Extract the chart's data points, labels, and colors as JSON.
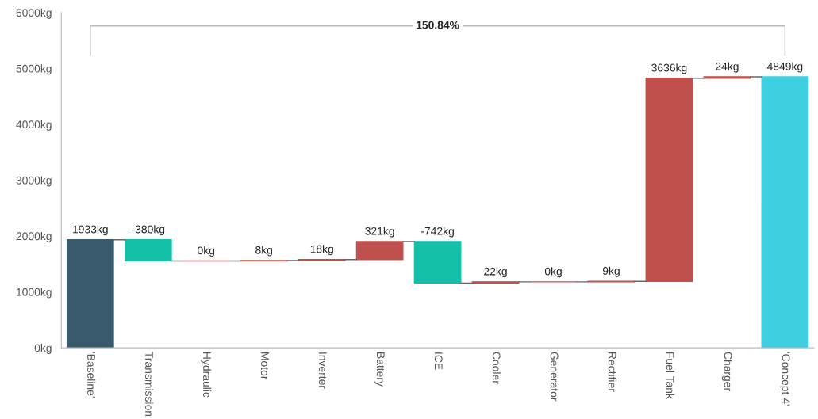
{
  "chart_data": {
    "type": "bar",
    "categories": [
      "'Baseline'",
      "Transmission",
      "Hydraulic",
      "Motor",
      "Inverter",
      "Battery",
      "ICE",
      "Cooler",
      "Generator",
      "Rectifier",
      "Fuel Tank",
      "Charger",
      "'Concept 4'"
    ],
    "values": [
      1933,
      -380,
      0,
      8,
      18,
      321,
      -742,
      22,
      0,
      9,
      3636,
      24,
      4849
    ],
    "base": [
      0,
      1933,
      1553,
      1553,
      1561,
      1579,
      1900,
      1158,
      1180,
      1180,
      1189,
      4825,
      0
    ],
    "colors": [
      "#3a5a6e",
      "#14c0a8",
      "#c0504d",
      "#c0504d",
      "#c0504d",
      "#c0504d",
      "#14c0a8",
      "#c0504d",
      "#c0504d",
      "#c0504d",
      "#c0504d",
      "#c0504d",
      "#3ecfe0"
    ],
    "value_labels": [
      "1933kg",
      "-380kg",
      "0kg",
      "8kg",
      "18kg",
      "321kg",
      "-742kg",
      "22kg",
      "0kg",
      "9kg",
      "3636kg",
      "24kg",
      "4849kg"
    ],
    "ylim": [
      0,
      6000
    ],
    "yticks": [
      {
        "value": 0,
        "label": "0kg"
      },
      {
        "value": 1000,
        "label": "1000kg"
      },
      {
        "value": 2000,
        "label": "2000kg"
      },
      {
        "value": 3000,
        "label": "3000kg"
      },
      {
        "value": 4000,
        "label": "4000kg"
      },
      {
        "value": 5000,
        "label": "5000kg"
      },
      {
        "value": 6000,
        "label": "6000kg"
      }
    ],
    "annotations": [
      "150.84%"
    ],
    "grid": false,
    "legend": false
  }
}
